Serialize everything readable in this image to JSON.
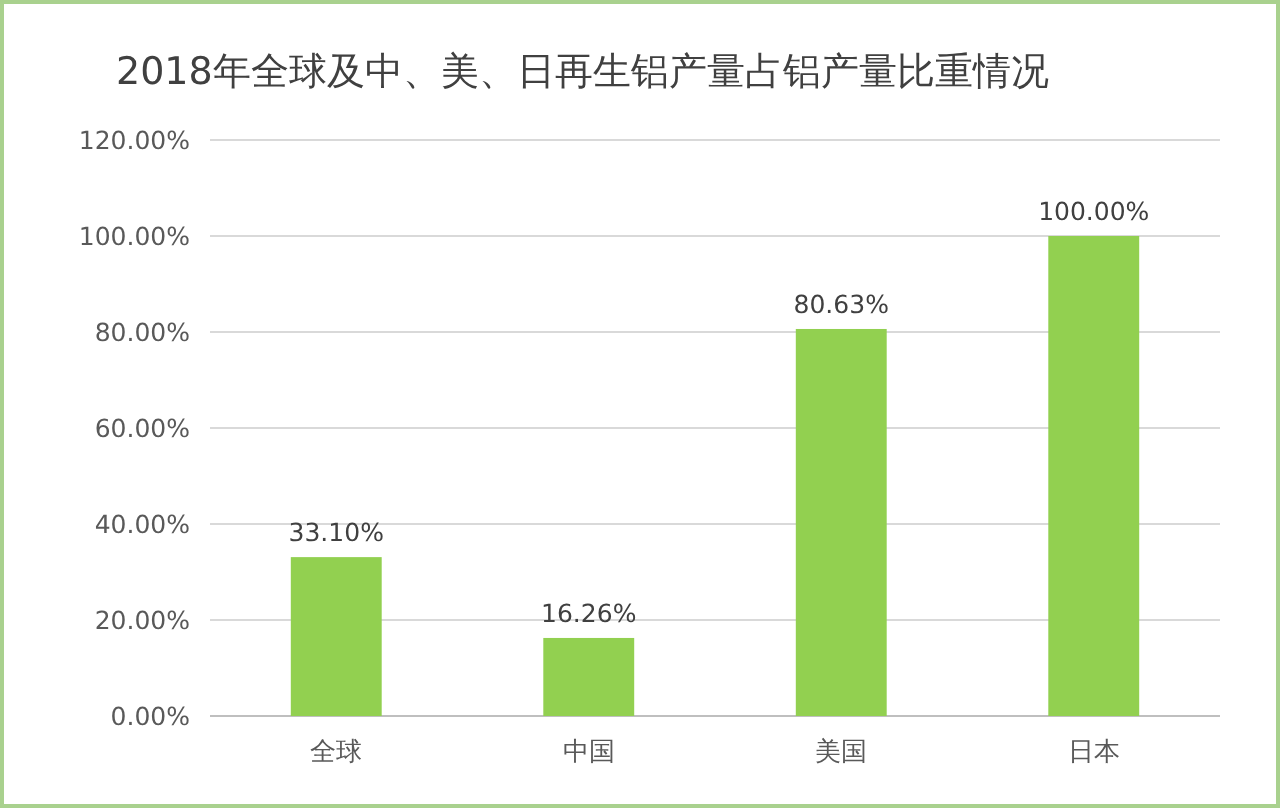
{
  "chart_data": {
    "type": "bar",
    "title": "2018年全球及中、美、日再生铝产量占铝产量比重情况",
    "categories": [
      "全球",
      "中国",
      "美国",
      "日本"
    ],
    "values": [
      33.1,
      16.26,
      80.63,
      100
    ],
    "value_labels": [
      "33.10%",
      "16.26%",
      "80.63%",
      "100.00%"
    ],
    "color": "#92d050",
    "ylim": [
      0,
      120
    ],
    "yticks": [
      {
        "value": 0,
        "label": "0.00%"
      },
      {
        "value": 20,
        "label": "20.00%"
      },
      {
        "value": 40,
        "label": "40.00%"
      },
      {
        "value": 60,
        "label": "60.00%"
      },
      {
        "value": 80,
        "label": "80.00%"
      },
      {
        "value": 100,
        "label": "100.00%"
      },
      {
        "value": 120,
        "label": "120.00%"
      }
    ],
    "grid": "y"
  }
}
